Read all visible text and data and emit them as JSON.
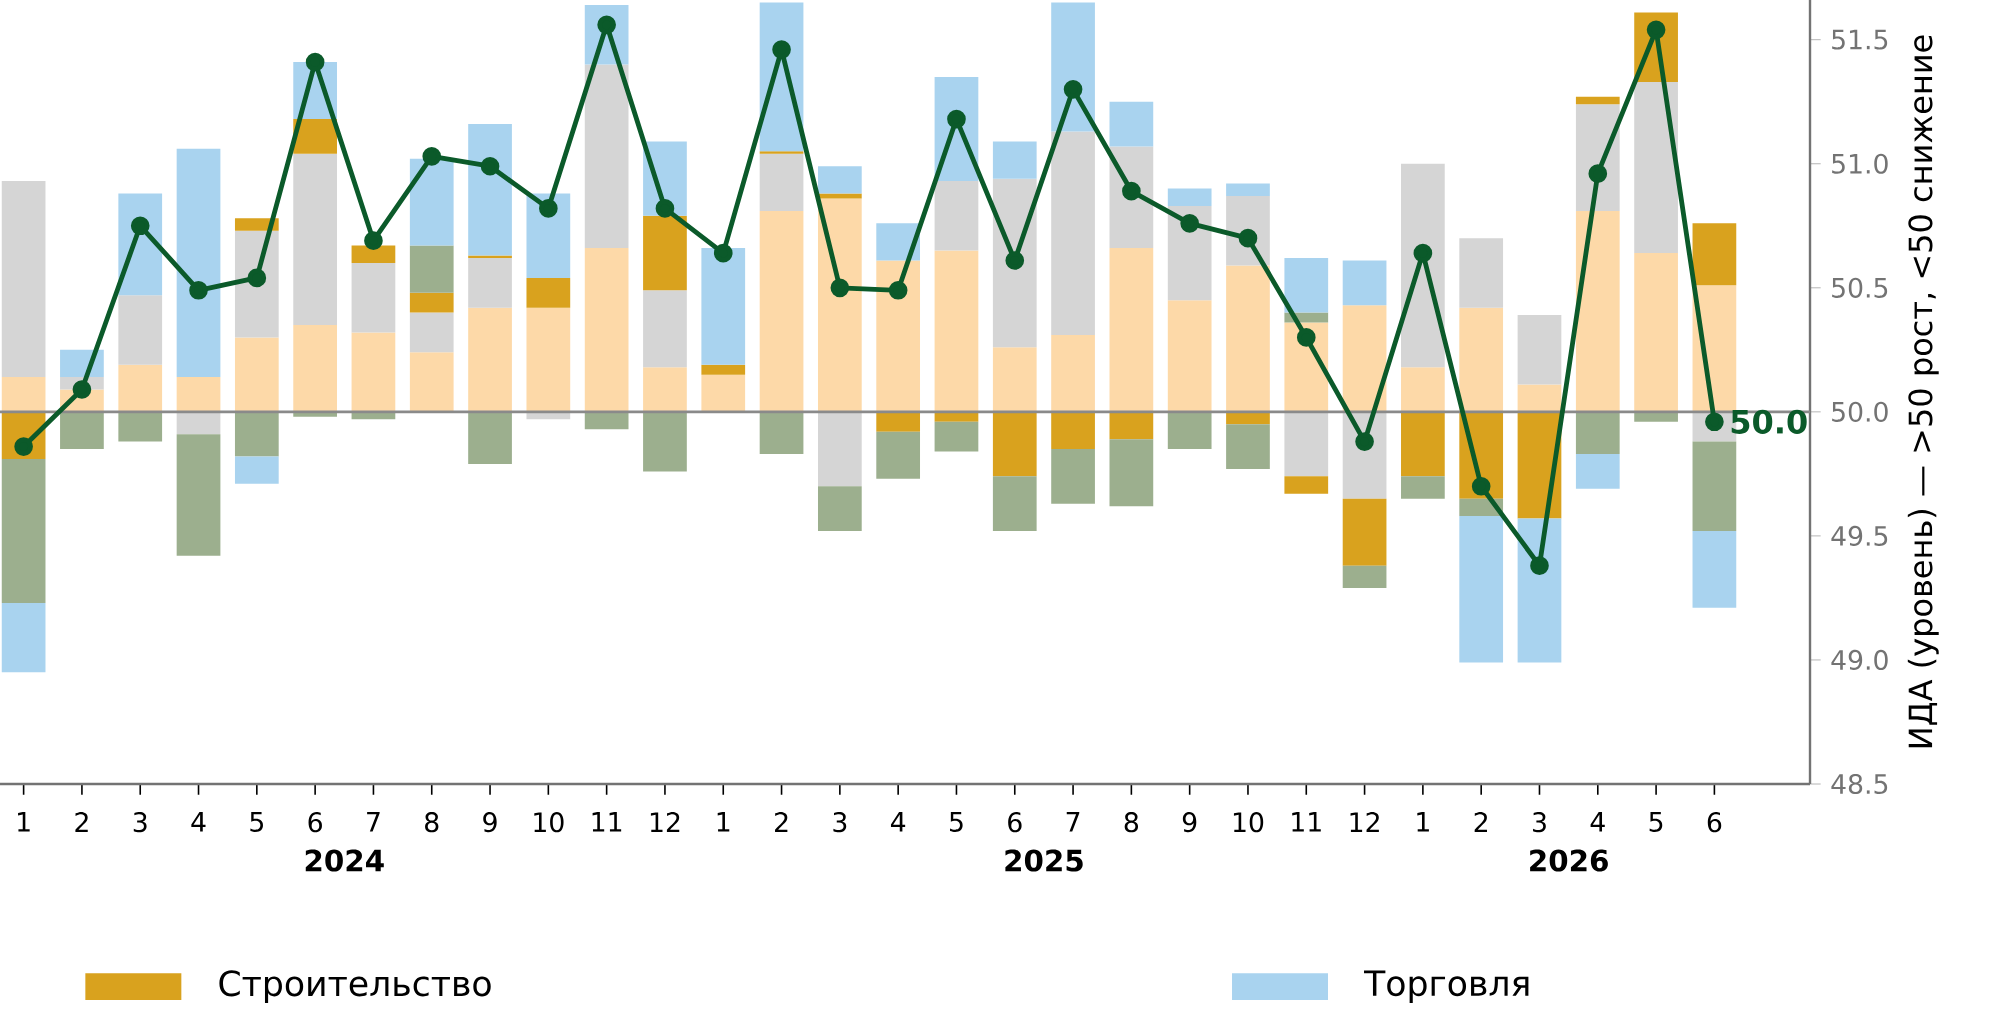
{
  "chart_data": {
    "type": "bar",
    "categories": [
      "1",
      "2",
      "3",
      "4",
      "5",
      "6",
      "7",
      "8",
      "9",
      "10",
      "11",
      "12",
      "1",
      "2",
      "3",
      "4",
      "5",
      "6",
      "7",
      "8",
      "9",
      "10",
      "11",
      "12",
      "1",
      "2",
      "3",
      "4",
      "5",
      "6"
    ],
    "series": [
      {
        "axis": "y2",
        "color": "#fdd9a8",
        "values": [
          0.14,
          0.09,
          0.19,
          0.14,
          0.3,
          0.35,
          0.32,
          0.24,
          0.42,
          0.42,
          0.66,
          0.18,
          0.15,
          0.81,
          0.86,
          0.61,
          0.65,
          0.26,
          0.31,
          0.66,
          0.45,
          0.59,
          0.36,
          0.43,
          0.18,
          0.42,
          0.11,
          0.81,
          0.64,
          0.51
        ],
        "base": [
          50,
          50,
          50,
          50,
          50,
          50,
          50,
          50,
          50,
          50,
          50,
          50,
          50,
          50,
          50,
          50,
          50,
          50,
          50,
          50,
          50,
          50,
          50,
          50,
          50,
          50,
          50,
          50,
          50,
          50
        ]
      },
      {
        "axis": "y2",
        "color": "#d5d5d5",
        "values": [
          0.79,
          0.05,
          0.28,
          -0.09,
          0.43,
          0.69,
          0.28,
          0.16,
          0.2,
          -0.03,
          0.74,
          0.31,
          null,
          0.23,
          -0.3,
          null,
          0.28,
          0.68,
          0.82,
          0.41,
          0.38,
          0.28,
          -0.26,
          -0.35,
          0.82,
          0.28,
          0.28,
          0.43,
          0.69,
          -0.12
        ],
        "base": [
          50.14,
          50.09,
          50.19,
          50,
          50.3,
          50.35,
          50.32,
          50.24,
          50.42,
          50,
          50.66,
          50.18,
          null,
          50.81,
          50,
          null,
          50.65,
          50.26,
          50.31,
          50.66,
          50.45,
          50.59,
          50,
          50,
          50.18,
          50.42,
          50.11,
          50.81,
          50.64,
          50
        ]
      },
      {
        "axis": "y2",
        "name": "Строительство",
        "color": "#d9a21e",
        "values": [
          -0.19,
          null,
          null,
          null,
          0.05,
          0.14,
          0.07,
          0.08,
          0.01,
          0.12,
          null,
          0.3,
          0.04,
          0.01,
          0.02,
          -0.08,
          -0.04,
          -0.26,
          -0.15,
          -0.11,
          null,
          -0.05,
          -0.07,
          -0.27,
          -0.26,
          -0.35,
          -0.43,
          0.03,
          0.28,
          0.25
        ],
        "base": [
          50,
          null,
          null,
          null,
          50.73,
          51.04,
          50.6,
          50.4,
          50.62,
          50.42,
          null,
          50.49,
          50.15,
          51.04,
          50.86,
          50,
          50,
          50,
          50,
          50,
          null,
          50,
          49.74,
          49.65,
          50,
          50,
          50,
          51.24,
          51.33,
          50.51
        ]
      },
      {
        "axis": "y2",
        "color": "#9caf8e",
        "values": [
          -0.58,
          -0.15,
          -0.12,
          -0.49,
          -0.18,
          -0.02,
          -0.03,
          0.19,
          -0.21,
          null,
          -0.07,
          -0.24,
          null,
          -0.17,
          -0.18,
          -0.19,
          -0.12,
          -0.22,
          -0.22,
          -0.27,
          -0.15,
          -0.18,
          0.04,
          -0.09,
          -0.09,
          -0.07,
          null,
          -0.17,
          -0.04,
          -0.36
        ],
        "base": [
          49.81,
          50,
          50,
          49.91,
          50,
          50,
          50,
          50.48,
          50,
          null,
          50,
          50,
          null,
          50,
          49.7,
          49.92,
          49.96,
          49.74,
          49.85,
          49.89,
          50,
          49.95,
          50.36,
          49.38,
          49.74,
          49.65,
          null,
          50,
          50,
          49.88
        ]
      },
      {
        "axis": "y2",
        "name": "Торговля",
        "color": "#a9d3ef",
        "values": [
          -0.28,
          0.11,
          0.41,
          0.92,
          -0.11,
          0.23,
          null,
          0.35,
          0.53,
          0.34,
          0.24,
          0.3,
          0.47,
          0.6,
          0.11,
          0.15,
          0.42,
          0.15,
          0.52,
          0.18,
          0.07,
          0.05,
          0.22,
          0.18,
          null,
          -0.59,
          -0.58,
          -0.14,
          null,
          -0.31
        ],
        "base": [
          49.23,
          50.14,
          50.47,
          50.14,
          49.82,
          51.18,
          null,
          50.67,
          50.63,
          50.54,
          51.4,
          50.79,
          50.19,
          51.05,
          50.88,
          50.61,
          50.93,
          50.94,
          51.13,
          51.07,
          50.83,
          50.87,
          50.4,
          50.43,
          null,
          49.58,
          49.57,
          49.83,
          null,
          49.52
        ]
      },
      {
        "type": "line",
        "axis": "y2",
        "color": "#0b5a2a",
        "marker": "circle",
        "line_style": "solid",
        "values": [
          49.86,
          50.09,
          50.75,
          50.49,
          50.54,
          51.41,
          50.69,
          51.03,
          50.99,
          50.82,
          51.56,
          50.82,
          50.64,
          51.46,
          50.5,
          50.49,
          51.18,
          50.61,
          51.3,
          50.89,
          50.76,
          50.7,
          50.3,
          49.88,
          50.64,
          49.7,
          49.38,
          50.96,
          51.54,
          49.96
        ],
        "value_labels": [
          null,
          null,
          null,
          null,
          null,
          null,
          null,
          null,
          null,
          null,
          null,
          null,
          null,
          null,
          null,
          null,
          null,
          null,
          null,
          null,
          null,
          null,
          null,
          null,
          null,
          null,
          null,
          null,
          null,
          "50.0"
        ]
      }
    ],
    "y2lim": [
      48.5,
      51.66
    ],
    "y2ticks": [
      48.5,
      {
        "value": 49,
        "label": "49.0"
      },
      49.5,
      {
        "value": 50,
        "label": "50.0"
      },
      50.5,
      {
        "value": 51,
        "label": "51.0"
      },
      51.5
    ],
    "y2label": "ИДА (уровень) — >50 рост, <50 снижение",
    "ref_lines": [
      {
        "axis": "y2",
        "value": 50,
        "color": "#8a8a8a"
      }
    ],
    "annotations": [
      "2024",
      "2025",
      "2026"
    ],
    "legend": "bottom",
    "grid": false
  }
}
